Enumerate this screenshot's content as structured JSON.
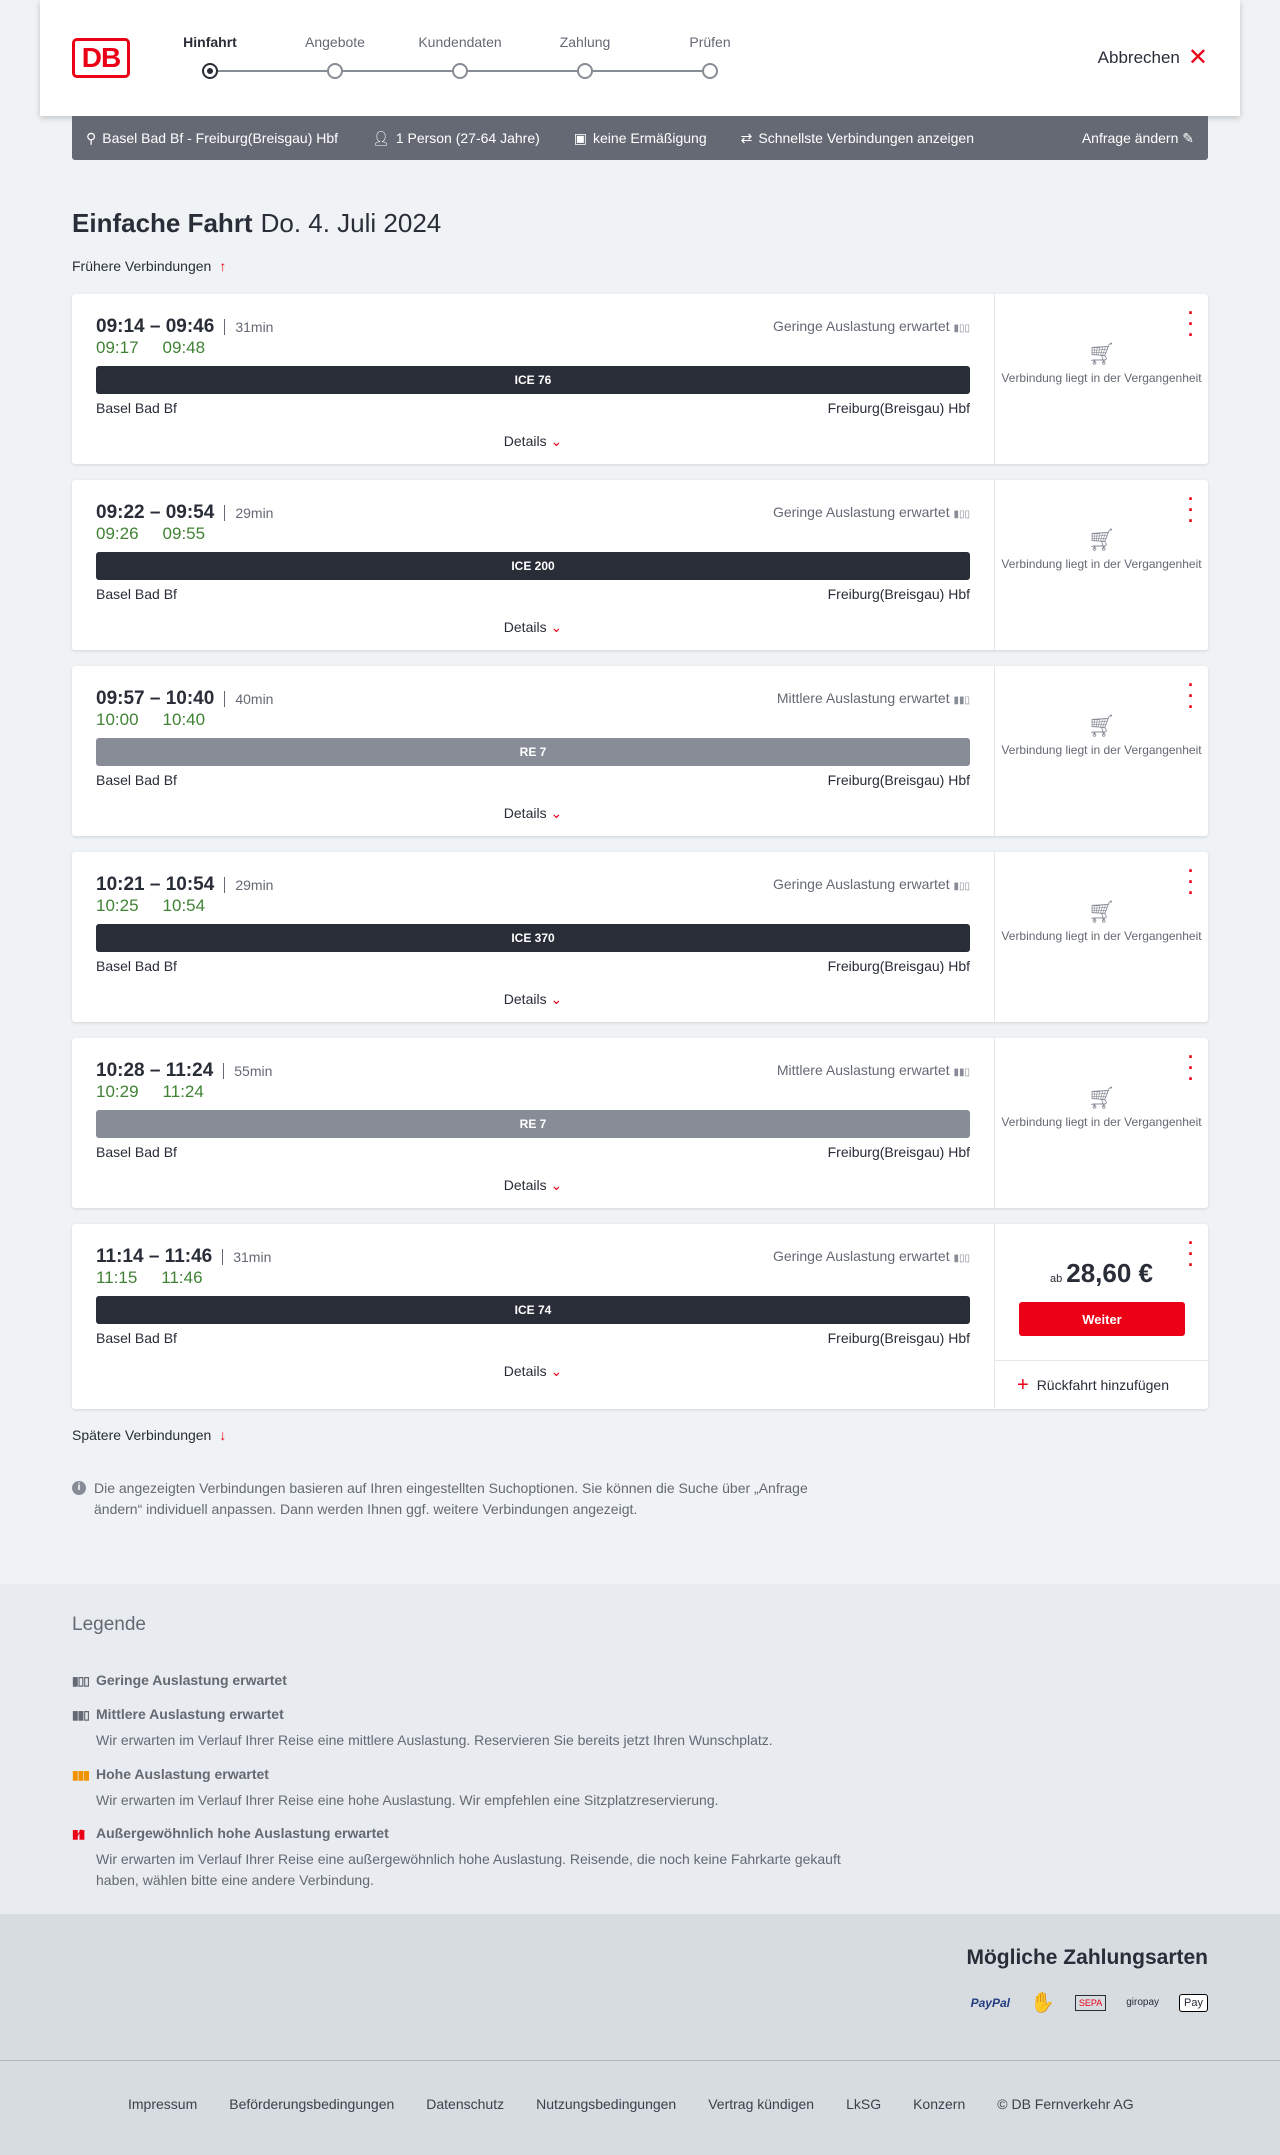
{
  "header": {
    "logo": "DB",
    "steps": [
      "Hinfahrt",
      "Angebote",
      "Kundendaten",
      "Zahlung",
      "Prüfen"
    ],
    "active_step": 0,
    "cancel": "Abbrechen"
  },
  "request": {
    "route": "Basel Bad Bf - Freiburg(Breisgau) Hbf",
    "travellers": "1 Person (27-64 Jahre)",
    "discount": "keine Ermäßigung",
    "fastest": "Schnellste Verbindungen anzeigen",
    "edit": "Anfrage ändern"
  },
  "title": {
    "type": "Einfache Fahrt",
    "date": "Do. 4. Juli 2024"
  },
  "earlier": "Frühere Verbindungen",
  "later": "Spätere Verbindungen",
  "from": "Basel Bad Bf",
  "to": "Freiburg(Breisgau) Hbf",
  "details": "Details",
  "past_text": "Verbindung liegt in der Vergangenheit",
  "connections": [
    {
      "time": "09:14 – 09:46",
      "duration": "31min",
      "rt_dep": "09:17",
      "rt_arr": "09:48",
      "train": "ICE 76",
      "kind": "ice",
      "occupancy": "Geringe Auslastung erwartet"
    },
    {
      "time": "09:22 – 09:54",
      "duration": "29min",
      "rt_dep": "09:26",
      "rt_arr": "09:55",
      "train": "ICE 200",
      "kind": "ice",
      "occupancy": "Geringe Auslastung erwartet"
    },
    {
      "time": "09:57 – 10:40",
      "duration": "40min",
      "rt_dep": "10:00",
      "rt_arr": "10:40",
      "train": "RE 7",
      "kind": "re",
      "occupancy": "Mittlere Auslastung erwartet"
    },
    {
      "time": "10:21 – 10:54",
      "duration": "29min",
      "rt_dep": "10:25",
      "rt_arr": "10:54",
      "train": "ICE 370",
      "kind": "ice",
      "occupancy": "Geringe Auslastung erwartet"
    },
    {
      "time": "10:28 – 11:24",
      "duration": "55min",
      "rt_dep": "10:29",
      "rt_arr": "11:24",
      "train": "RE 7",
      "kind": "re",
      "occupancy": "Mittlere Auslastung erwartet"
    },
    {
      "time": "11:14 – 11:46",
      "duration": "31min",
      "rt_dep": "11:15",
      "rt_arr": "11:46",
      "train": "ICE 74",
      "kind": "ice",
      "occupancy": "Geringe Auslastung erwartet",
      "price_prefix": "ab",
      "price": "28,60 €",
      "button": "Weiter",
      "return": "Rückfahrt hinzufügen"
    }
  ],
  "info": "Die angezeigten Verbindungen basieren auf Ihren eingestellten Suchoptionen. Sie können die Suche über „Anfrage ändern“ individuell anpassen. Dann werden Ihnen ggf. weitere Verbindungen angezeigt.",
  "legend": {
    "title": "Legende",
    "items": [
      {
        "label": "Geringe Auslastung erwartet",
        "text": "",
        "color": "#646973"
      },
      {
        "label": "Mittlere Auslastung erwartet",
        "text": "Wir erwarten im Verlauf Ihrer Reise eine mittlere Auslastung. Reservieren Sie bereits jetzt Ihren Wunschplatz.",
        "color": "#646973"
      },
      {
        "label": "Hohe Auslastung erwartet",
        "text": "Wir erwarten im Verlauf Ihrer Reise eine hohe Auslastung. Wir empfehlen eine Sitzplatzreservierung.",
        "color": "#f39200"
      },
      {
        "label": "Außergewöhnlich hohe Auslastung erwartet",
        "text": "Wir erwarten im Verlauf Ihrer Reise eine außergewöhnlich hohe Auslastung. Reisende, die noch keine Fahrkarte gekauft haben, wählen bitte eine andere Verbindung.",
        "color": "#ec0016"
      }
    ]
  },
  "payment": {
    "title": "Mögliche Zahlungsarten",
    "methods": [
      "PayPal",
      "Kreditkarte",
      "SEPA",
      "giropay",
      "Apple Pay"
    ]
  },
  "footer": [
    "Impressum",
    "Beförderungsbedingungen",
    "Datenschutz",
    "Nutzungsbedingungen",
    "Vertrag kündigen",
    "LkSG",
    "Konzern",
    "© DB Fernverkehr AG"
  ],
  "colors": {
    "accent": "#ec0016",
    "realtime": "#408335",
    "ice": "#282d37",
    "re": "#878c96"
  }
}
